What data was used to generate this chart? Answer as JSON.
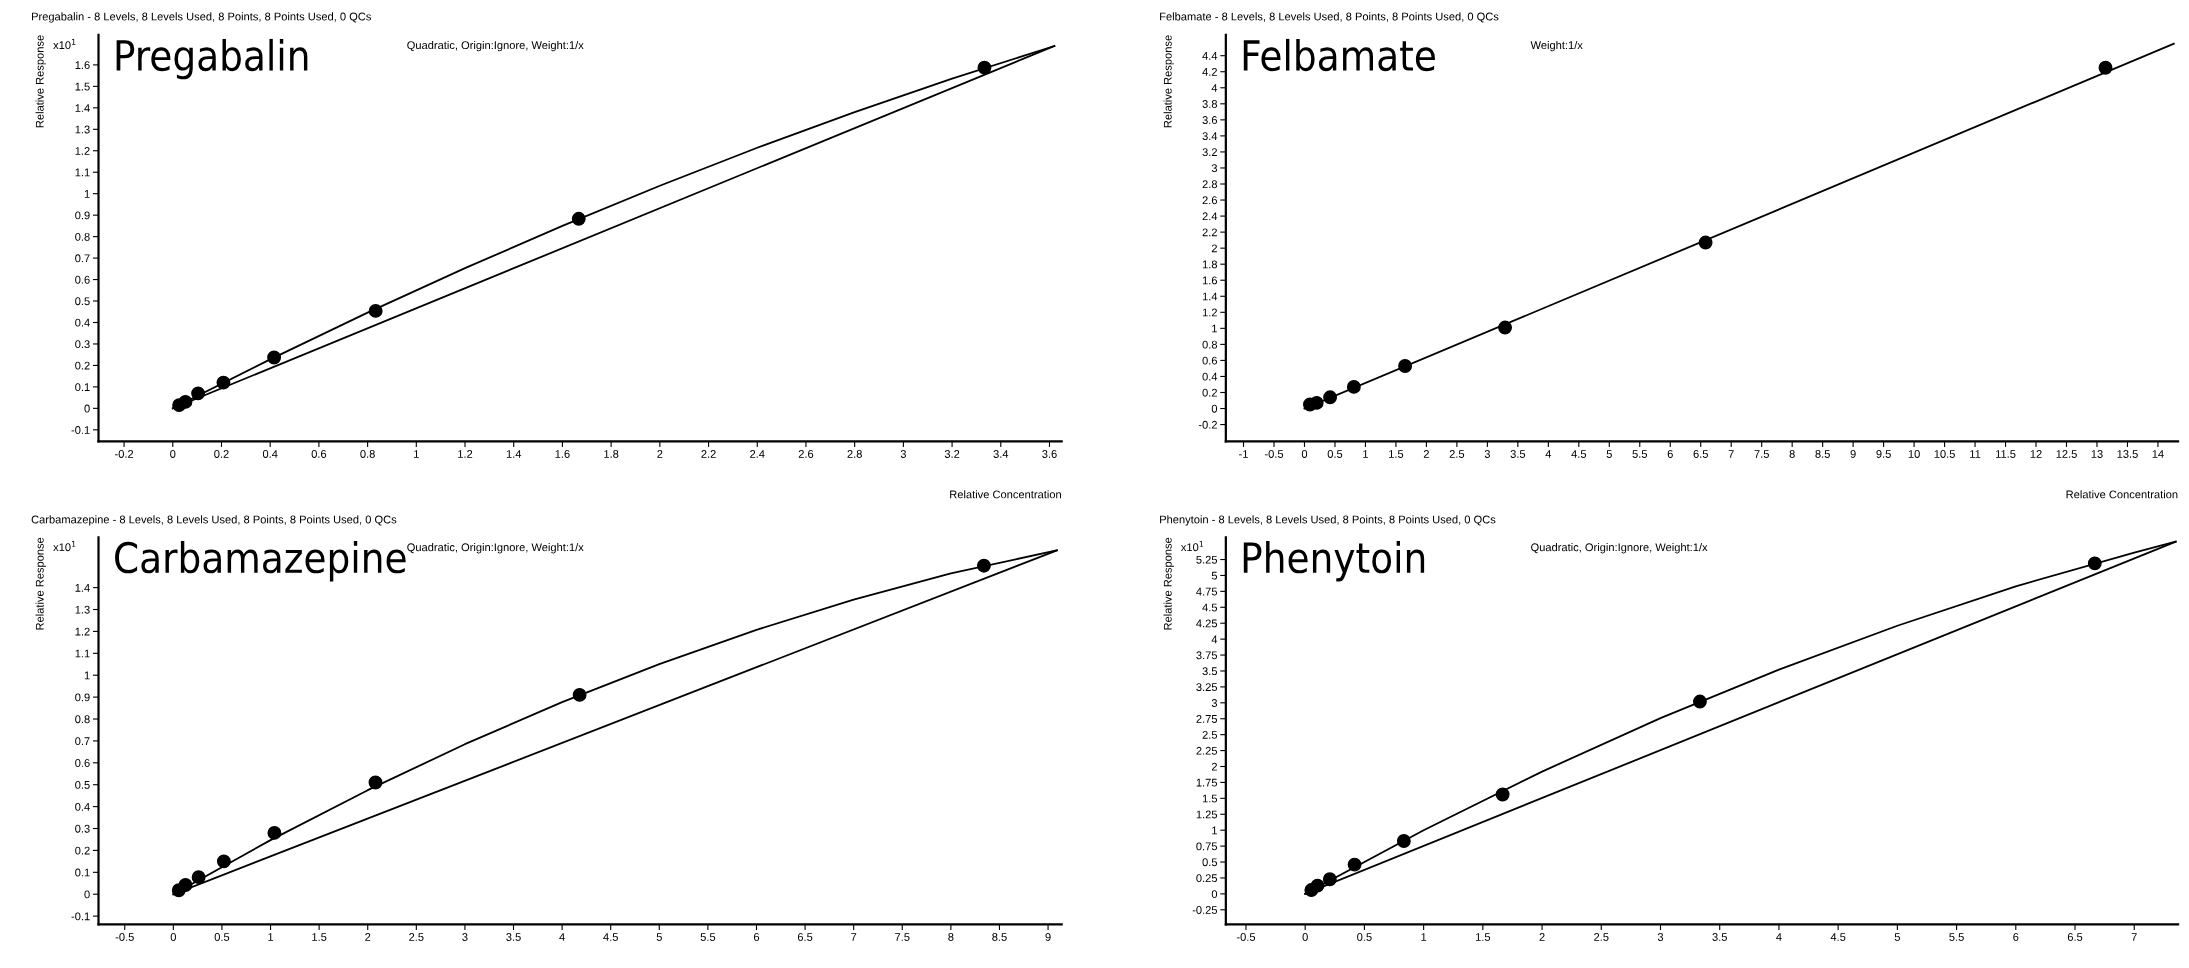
{
  "chart_data": [
    {
      "type": "scatter",
      "title": "Pregabalin - 8 Levels, 8 Levels Used, 8 Points, 8 Points Used, 0 QCs",
      "subtitle": "Pregabalin",
      "xlabel": "Relative Concentration",
      "ylabel": "Relative Response",
      "annotations": [
        "Quadratic, Origin:Ignore, Weight:1/x",
        "x10$^{1}$"
      ],
      "grid": false,
      "legend": false,
      "xlim": [
        -0.305,
        3.65
      ],
      "ylim": [
        -0.154,
        1.74
      ],
      "xticks": [
        -0.2,
        0,
        0.2,
        0.4,
        0.6,
        0.8,
        1,
        1.2,
        1.4,
        1.6,
        1.8,
        2,
        2.2,
        2.4,
        2.6,
        2.8,
        3,
        3.2,
        3.4,
        3.6
      ],
      "yticks": [
        -0.1,
        0,
        0.1,
        0.2,
        0.3,
        0.4,
        0.5,
        0.6,
        0.7,
        0.8,
        0.9,
        1,
        1.1,
        1.2,
        1.3,
        1.4,
        1.5,
        1.6
      ],
      "series": [
        {
          "marker": "circle",
          "color": "#000000",
          "x": [
            0.026,
            0.052,
            0.104,
            0.208,
            0.416,
            0.833,
            1.667,
            3.333
          ],
          "values": [
            0.015,
            0.03,
            0.07,
            0.12,
            0.237,
            0.454,
            0.883,
            1.587
          ]
        },
        {
          "type": "line",
          "color": "#000000",
          "x": [
            0,
            0.4,
            0.8,
            1.2,
            1.6,
            2.0,
            2.4,
            2.8,
            3.2,
            3.62
          ],
          "values": [
            0,
            0.228,
            0.446,
            0.653,
            0.85,
            1.037,
            1.214,
            1.38,
            1.536,
            1.688
          ]
        },
        {
          "type": "line",
          "color": "#000000",
          "x": [
            0,
            3.62
          ],
          "values": [
            0,
            1.688
          ]
        }
      ]
    },
    {
      "type": "scatter",
      "title": "Felbamate - 8 Levels, 8 Levels Used, 8 Points, 8 Points Used, 0 QCs",
      "subtitle": "Felbamate",
      "xlabel": "Relative Concentration",
      "ylabel": "Relative Response",
      "annotations": [
        "Weight:1/x"
      ],
      "grid": false,
      "legend": false,
      "xlim": [
        -1.29,
        14.33
      ],
      "ylim": [
        -0.41,
        4.66
      ],
      "xticks": [
        -1,
        -0.5,
        0,
        0.5,
        1,
        1.5,
        2,
        2.5,
        3,
        3.5,
        4,
        4.5,
        5,
        5.5,
        6,
        6.5,
        7,
        7.5,
        8,
        8.5,
        9,
        9.5,
        10,
        10.5,
        11,
        11.5,
        12,
        12.5,
        13,
        13.5,
        14
      ],
      "yticks": [
        -0.2,
        0,
        0.2,
        0.4,
        0.6,
        0.8,
        1,
        1.2,
        1.4,
        1.6,
        1.8,
        2,
        2.2,
        2.4,
        2.6,
        2.8,
        3,
        3.2,
        3.4,
        3.6,
        3.8,
        4,
        4.2,
        4.4
      ],
      "series": [
        {
          "marker": "circle",
          "color": "#000000",
          "x": [
            0.09,
            0.2,
            0.42,
            0.81,
            1.65,
            3.29,
            6.58,
            13.14
          ],
          "values": [
            0.05,
            0.07,
            0.14,
            0.27,
            0.53,
            1.01,
            2.07,
            4.25
          ]
        },
        {
          "type": "line",
          "color": "#000000",
          "x": [
            0,
            14.26
          ],
          "values": [
            0,
            4.55
          ]
        }
      ]
    },
    {
      "type": "scatter",
      "title": "Carbamazepine - 8 Levels, 8 Levels Used, 8 Points, 8 Points Used, 0 QCs",
      "subtitle": "Carbamazepine",
      "ylabel": "Relative Response",
      "annotations": [
        "Quadratic, Origin:Ignore, Weight:1/x",
        "x10$^{1}$"
      ],
      "grid": false,
      "legend": false,
      "xlim": [
        -0.77,
        9.14
      ],
      "ylim": [
        -0.138,
        1.63
      ],
      "xticks": [
        -0.5,
        0,
        0.5,
        1,
        1.5,
        2,
        2.5,
        3,
        3.5,
        4,
        4.5,
        5,
        5.5,
        6,
        6.5,
        7,
        7.5,
        8,
        8.5,
        9
      ],
      "yticks": [
        -0.1,
        0,
        0.1,
        0.2,
        0.3,
        0.4,
        0.5,
        0.6,
        0.7,
        0.8,
        0.9,
        1,
        1.1,
        1.2,
        1.3,
        1.4
      ],
      "series": [
        {
          "marker": "circle",
          "color": "#000000",
          "x": [
            0.056,
            0.125,
            0.26,
            0.52,
            1.04,
            2.08,
            4.18,
            8.34
          ],
          "values": [
            0.018,
            0.042,
            0.078,
            0.15,
            0.28,
            0.51,
            0.91,
            1.5
          ]
        },
        {
          "type": "line",
          "color": "#000000",
          "x": [
            0,
            1,
            2,
            3,
            4,
            5,
            6,
            7,
            8,
            9.09
          ],
          "values": [
            0,
            0.247,
            0.475,
            0.685,
            0.877,
            1.051,
            1.207,
            1.345,
            1.465,
            1.57
          ]
        },
        {
          "type": "line",
          "color": "#000000",
          "x": [
            0,
            9.09
          ],
          "values": [
            0,
            1.57
          ]
        }
      ]
    },
    {
      "type": "scatter",
      "title": "Phenytoin - 8 Levels, 8 Levels Used, 8 Points, 8 Points Used, 0 QCs",
      "subtitle": "Phenytoin",
      "ylabel": "Relative Response",
      "annotations": [
        "Quadratic, Origin:Ignore, Weight:1/x",
        "x10$^{1}$"
      ],
      "grid": false,
      "legend": false,
      "xlim": [
        -0.67,
        7.37
      ],
      "ylim": [
        -0.48,
        5.6
      ],
      "xticks": [
        -0.5,
        0,
        0.5,
        1,
        1.5,
        2,
        2.5,
        3,
        3.5,
        4,
        4.5,
        5,
        5.5,
        6,
        6.5,
        7
      ],
      "yticks": [
        -0.25,
        0,
        0.25,
        0.5,
        0.75,
        1,
        1.25,
        1.5,
        1.75,
        2,
        2.25,
        2.5,
        2.75,
        3,
        3.25,
        3.5,
        3.75,
        4,
        4.25,
        4.5,
        4.75,
        5,
        5.25
      ],
      "series": [
        {
          "marker": "circle",
          "color": "#000000",
          "x": [
            0.052,
            0.104,
            0.208,
            0.417,
            0.833,
            1.667,
            3.333,
            6.667
          ],
          "values": [
            0.06,
            0.13,
            0.23,
            0.46,
            0.83,
            1.56,
            3.02,
            5.19
          ]
        },
        {
          "type": "line",
          "color": "#000000",
          "x": [
            0,
            1,
            2,
            3,
            4,
            5,
            6,
            7,
            7.35
          ],
          "values": [
            0,
            1.0,
            1.92,
            2.76,
            3.52,
            4.21,
            4.83,
            5.36,
            5.53
          ]
        },
        {
          "type": "line",
          "color": "#000000",
          "x": [
            0,
            7.35
          ],
          "values": [
            0,
            5.53
          ]
        }
      ]
    }
  ]
}
